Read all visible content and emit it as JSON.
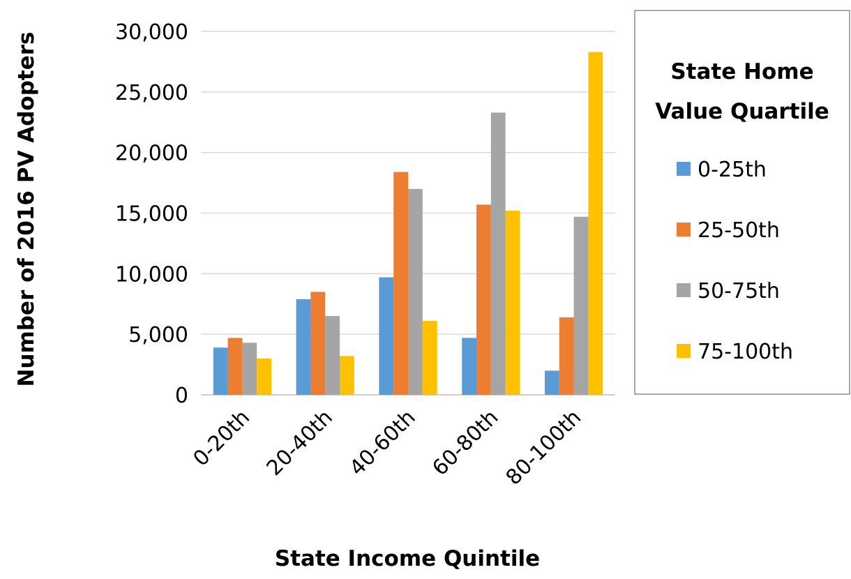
{
  "chart_data": {
    "type": "bar",
    "title": "",
    "xlabel": "State Income Quintile",
    "ylabel": "Number of 2016 PV Adopters",
    "ylim": [
      0,
      30000
    ],
    "yticks": [
      "0",
      "5,000",
      "10,000",
      "15,000",
      "20,000",
      "25,000",
      "30,000"
    ],
    "categories": [
      "0-20th",
      "20-40th",
      "40-60th",
      "60-80th",
      "80-100th"
    ],
    "legend_title": [
      "State Home",
      "Value Quartile"
    ],
    "legend_position": "right",
    "grid": true,
    "series": [
      {
        "name": "0-25th",
        "color": "#5b9bd5",
        "values": [
          3900,
          7900,
          9700,
          4700,
          2000
        ]
      },
      {
        "name": "25-50th",
        "color": "#ed7d31",
        "values": [
          4700,
          8500,
          18400,
          15700,
          6400
        ]
      },
      {
        "name": "50-75th",
        "color": "#a5a5a5",
        "values": [
          4300,
          6500,
          17000,
          23300,
          14700
        ]
      },
      {
        "name": "75-100th",
        "color": "#ffc000",
        "values": [
          3000,
          3200,
          6100,
          15200,
          28300
        ]
      }
    ]
  }
}
